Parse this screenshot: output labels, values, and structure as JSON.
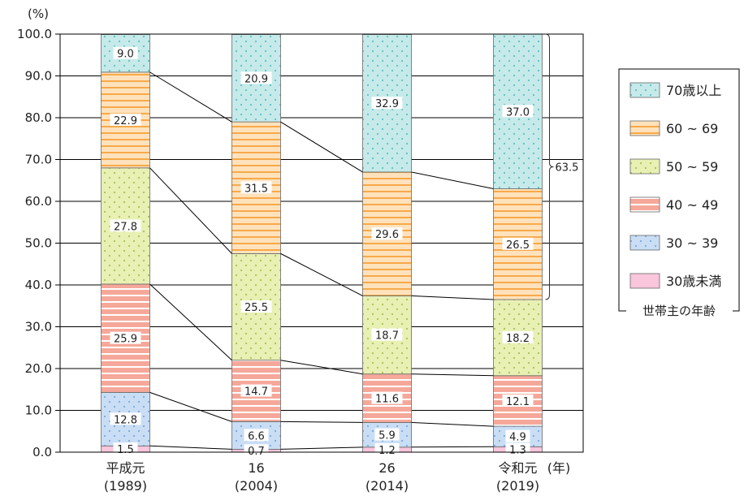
{
  "chart_data": {
    "type": "stacked-bar",
    "y_unit": "(%)",
    "x_unit": "(年)",
    "ylim": [
      0,
      100
    ],
    "y_ticks": [
      "100.0",
      "90.0",
      "80.0",
      "70.0",
      "60.0",
      "50.0",
      "40.0",
      "30.0",
      "20.0",
      "10.0",
      "0.0"
    ],
    "categories": [
      {
        "line1": "平成元",
        "line2": "(1989)"
      },
      {
        "line1": "16",
        "line2": "(2004)"
      },
      {
        "line1": "26",
        "line2": "(2014)"
      },
      {
        "line1": "令和元",
        "line2": "(2019)"
      }
    ],
    "series": [
      {
        "name": "30歳未満",
        "values": [
          1.5,
          0.7,
          1.2,
          1.3
        ],
        "labels": [
          "1.5",
          "0.7",
          "1.2",
          "1.3"
        ],
        "fill": "#f9c6dc",
        "pattern": "none"
      },
      {
        "name": "30 ~ 39",
        "values": [
          12.8,
          6.6,
          5.9,
          4.9
        ],
        "labels": [
          "12.8",
          "6.6",
          "5.9",
          "4.9"
        ],
        "fill": "#c9def5",
        "pattern": "dots",
        "pattern_color": "#7fa8d8"
      },
      {
        "name": "40 ~ 49",
        "values": [
          25.9,
          14.7,
          11.6,
          12.1
        ],
        "labels": [
          "25.9",
          "14.7",
          "11.6",
          "12.1"
        ],
        "fill": "#f5a89a",
        "pattern": "hlines",
        "pattern_color": "#ffffff"
      },
      {
        "name": "50 ~ 59",
        "values": [
          27.8,
          25.5,
          18.7,
          18.2
        ],
        "labels": [
          "27.8",
          "25.5",
          "18.7",
          "18.2"
        ],
        "fill": "#e8f0b4",
        "pattern": "dots",
        "pattern_color": "#a8c25a"
      },
      {
        "name": "60 ~ 69",
        "values": [
          22.9,
          31.5,
          29.6,
          26.5
        ],
        "labels": [
          "22.9",
          "31.5",
          "29.6",
          "26.5"
        ],
        "fill": "#ffe2bc",
        "pattern": "hlines",
        "pattern_color": "#f7a94a"
      },
      {
        "name": "70歳以上",
        "values": [
          9.0,
          20.9,
          32.9,
          37.0
        ],
        "labels": [
          "9.0",
          "20.9",
          "32.9",
          "37.0"
        ],
        "fill": "#c6eaea",
        "pattern": "dots",
        "pattern_color": "#5fc0c0"
      }
    ],
    "legend": {
      "title": "世帯主の年齢",
      "position": "right",
      "order": [
        5,
        4,
        3,
        2,
        1,
        0
      ]
    },
    "annotation": {
      "label": "63.5",
      "from": 36.5,
      "to": 100
    }
  }
}
